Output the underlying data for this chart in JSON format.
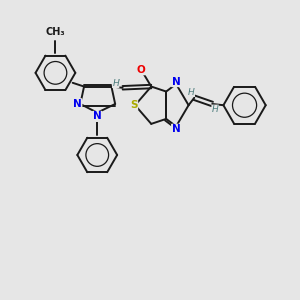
{
  "background_color": "#e6e6e6",
  "bond_color": "#1a1a1a",
  "N_color": "#0000ee",
  "O_color": "#ee0000",
  "S_color": "#aaaa00",
  "H_color": "#4a7a7a",
  "figsize": [
    3.0,
    3.0
  ],
  "dpi": 100,
  "xlim": [
    0,
    12
  ],
  "ylim": [
    0,
    12
  ]
}
